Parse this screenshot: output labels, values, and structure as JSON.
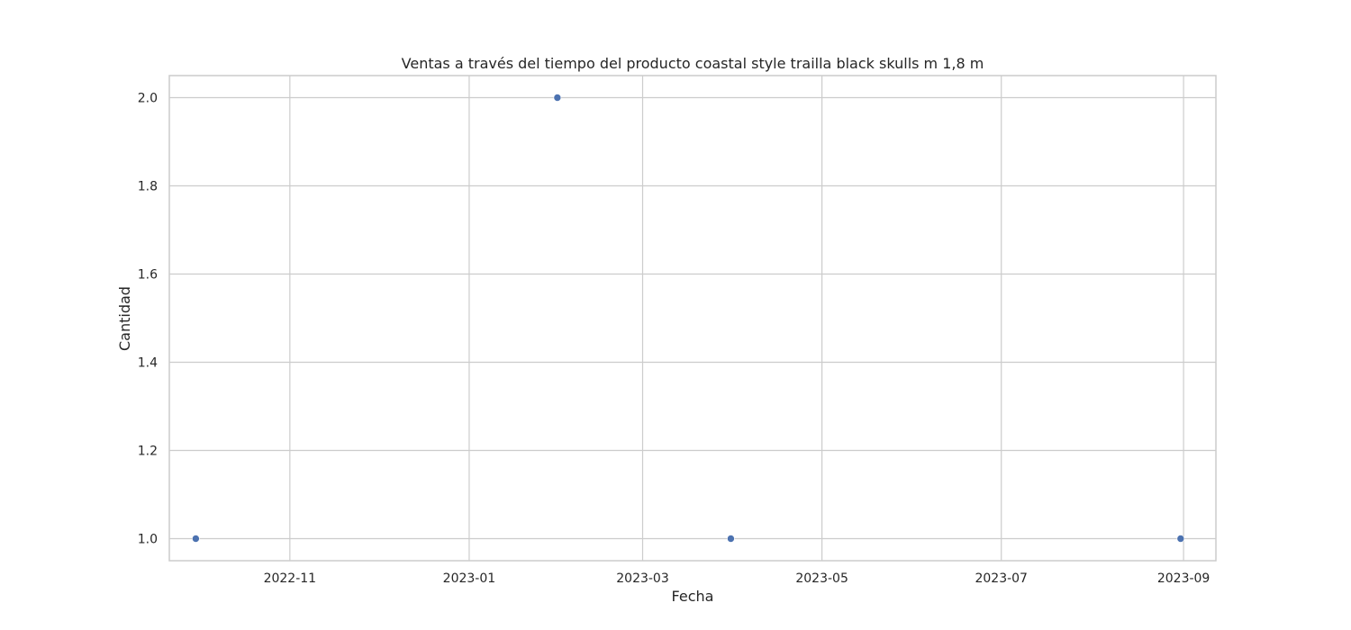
{
  "chart_data": {
    "type": "scatter",
    "title": "Ventas a través del tiempo del producto coastal style trailla black skulls m 1,8 m",
    "xlabel": "Fecha",
    "ylabel": "Cantidad",
    "x_type": "date",
    "xlim": [
      "2022-09-21",
      "2023-09-12"
    ],
    "ylim": [
      0.95,
      2.05
    ],
    "x_ticks": [
      "2022-11",
      "2023-01",
      "2023-03",
      "2023-05",
      "2023-07",
      "2023-09"
    ],
    "x_tick_dates": [
      "2022-11-01",
      "2023-01-01",
      "2023-03-01",
      "2023-05-01",
      "2023-07-01",
      "2023-09-01"
    ],
    "y_ticks": [
      "1.0",
      "1.2",
      "1.4",
      "1.6",
      "1.8",
      "2.0"
    ],
    "y_tick_values": [
      1.0,
      1.2,
      1.4,
      1.6,
      1.8,
      2.0
    ],
    "grid": true,
    "series": [
      {
        "color": "#4c72b0",
        "points": [
          {
            "x": "2022-09-30",
            "y": 1
          },
          {
            "x": "2023-01-31",
            "y": 2
          },
          {
            "x": "2023-03-31",
            "y": 1
          },
          {
            "x": "2023-08-31",
            "y": 1
          }
        ]
      }
    ]
  }
}
